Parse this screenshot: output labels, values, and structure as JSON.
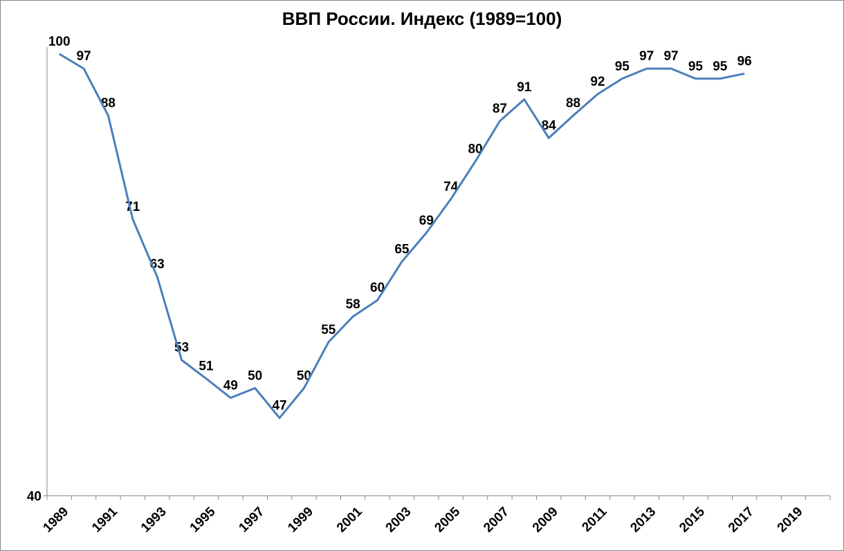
{
  "chart_data": {
    "type": "line",
    "title": "ВВП России. Индекс (1989=100)",
    "categories": [
      "1989",
      null,
      "1991",
      null,
      "1993",
      null,
      "1995",
      null,
      "1997",
      null,
      "1999",
      null,
      "2001",
      null,
      "2003",
      null,
      "2005",
      null,
      "2007",
      null,
      "2009",
      null,
      "2011",
      null,
      "2013",
      null,
      "2015",
      null,
      "2017",
      null,
      "2019",
      null
    ],
    "series": [
      {
        "color": "#4a7ebb",
        "values": [
          100,
          97,
          88,
          71,
          63,
          53,
          51,
          49,
          50,
          47,
          50,
          55,
          58,
          60,
          65,
          69,
          74,
          80,
          87,
          91,
          84,
          88,
          92,
          95,
          97,
          97,
          95,
          95,
          96,
          null,
          null,
          null
        ]
      }
    ],
    "ylim": [
      40,
      100
    ],
    "yticks": [
      40
    ],
    "log_scale": true,
    "grid": false
  }
}
